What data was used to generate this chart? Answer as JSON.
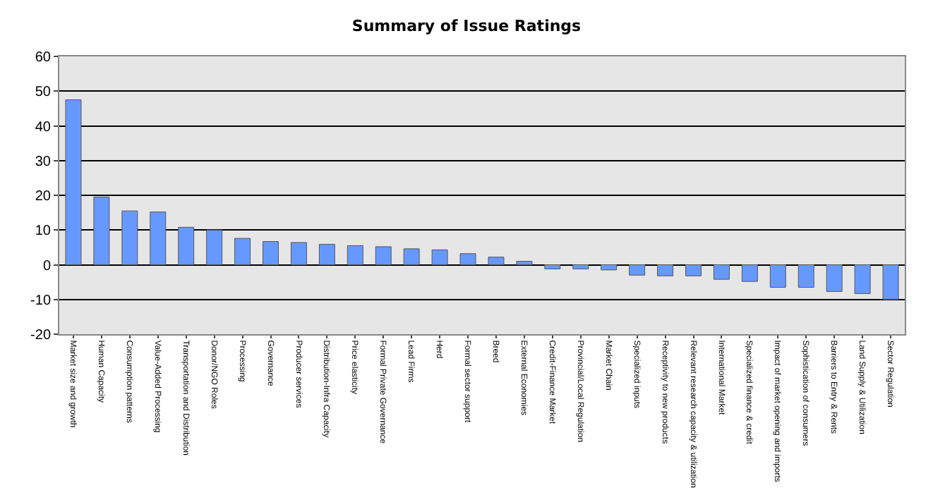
{
  "chart_data": {
    "type": "bar",
    "title": "Summary of Issue Ratings",
    "categories": [
      "Market size and growth",
      "Human Capacity",
      "Consumption patterns",
      "Value-Added Processing",
      "Transportation and Distribution",
      "Donor/NGO Roles",
      "Processing",
      "Governance",
      "Producer services",
      "Distribution-Infra Capacity",
      "Price elasticity",
      "Formal Private Governance",
      "Lead Firms",
      "Herd",
      "Formal sector support",
      "Breed",
      "External Economies",
      "Credit-Finance Market",
      "Provincial/Local Regulation",
      "Market Chain",
      "Specialized inputs",
      "Receptivity to new products",
      "Relevant research capacity & utilization",
      "International Market",
      "Specialized finance & credit",
      "Impact of market opening and imports",
      "Sophistication of consumers",
      "Barriers to Entry & Rents",
      "Land Supply & Utilization",
      "Sector Regulation"
    ],
    "values": [
      47.5,
      19.5,
      15.5,
      15.2,
      10.8,
      10,
      7.6,
      6.7,
      6.4,
      5.9,
      5.5,
      5.2,
      4.6,
      4.3,
      3.2,
      2.2,
      1,
      -1.2,
      -1.2,
      -1.5,
      -3,
      -3.2,
      -3.2,
      -4.2,
      -4.8,
      -6.5,
      -6.5,
      -7.7,
      -8.3,
      -10
    ],
    "color": "#6699ff",
    "ylim": [
      -20,
      60
    ],
    "yticks": [
      -20,
      -10,
      0,
      10,
      20,
      30,
      40,
      50,
      60
    ],
    "grid": "y"
  }
}
